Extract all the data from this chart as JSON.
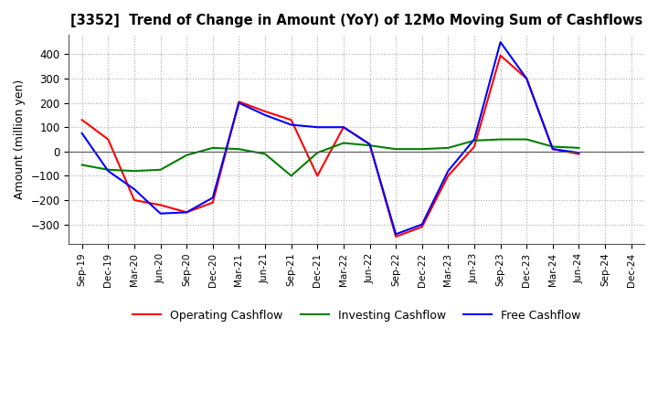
{
  "title": "[3352]  Trend of Change in Amount (YoY) of 12Mo Moving Sum of Cashflows",
  "ylabel": "Amount (million yen)",
  "xlabels": [
    "Sep-19",
    "Dec-19",
    "Mar-20",
    "Jun-20",
    "Sep-20",
    "Dec-20",
    "Mar-21",
    "Jun-21",
    "Sep-21",
    "Dec-21",
    "Mar-22",
    "Jun-22",
    "Sep-22",
    "Dec-22",
    "Mar-23",
    "Jun-23",
    "Sep-23",
    "Dec-23",
    "Mar-24",
    "Jun-24",
    "Sep-24",
    "Dec-24"
  ],
  "operating": [
    130,
    50,
    -200,
    -220,
    -250,
    -210,
    205,
    165,
    130,
    -100,
    100,
    30,
    -350,
    -310,
    -100,
    20,
    395,
    300,
    10,
    -10,
    null,
    null
  ],
  "investing": [
    -55,
    -75,
    -80,
    -75,
    -15,
    15,
    10,
    -10,
    -100,
    -5,
    35,
    25,
    10,
    10,
    15,
    45,
    50,
    50,
    20,
    15,
    null,
    null
  ],
  "free": [
    75,
    -80,
    -155,
    -255,
    -250,
    -190,
    200,
    150,
    110,
    100,
    100,
    30,
    -340,
    -300,
    -80,
    50,
    450,
    300,
    10,
    -5,
    null,
    null
  ],
  "ylim": [
    -380,
    480
  ],
  "yticks": [
    -300,
    -200,
    -100,
    0,
    100,
    200,
    300,
    400
  ],
  "operating_color": "#ff0000",
  "investing_color": "#008000",
  "free_color": "#0000ff",
  "legend_labels": [
    "Operating Cashflow",
    "Investing Cashflow",
    "Free Cashflow"
  ],
  "grid_color": "#aaaaaa",
  "grid_linestyle": "dotted"
}
